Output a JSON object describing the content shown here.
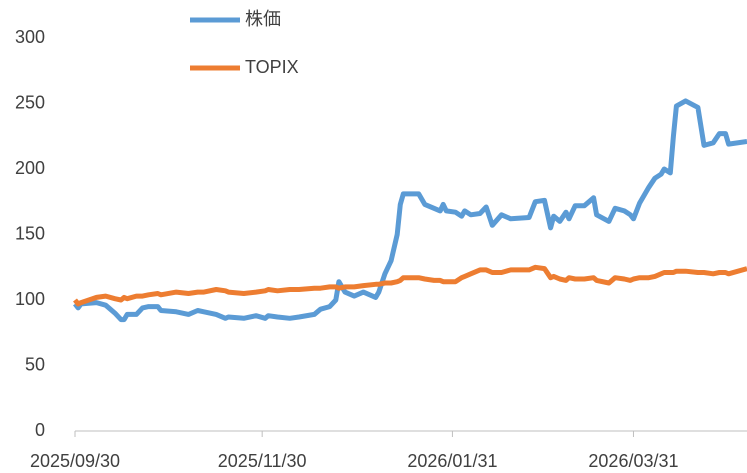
{
  "chart_data": {
    "type": "line",
    "x": [
      "2025/09/30",
      "2025/10/01",
      "2025/10/02",
      "2025/10/07",
      "2025/10/10",
      "2025/10/13",
      "2025/10/15",
      "2025/10/16",
      "2025/10/17",
      "2025/10/20",
      "2025/10/22",
      "2025/10/24",
      "2025/10/27",
      "2025/10/28",
      "2025/11/02",
      "2025/11/06",
      "2025/11/09",
      "2025/11/11",
      "2025/11/15",
      "2025/11/18",
      "2025/11/19",
      "2025/11/24",
      "2025/11/28",
      "2025/12/01",
      "2025/12/02",
      "2025/12/05",
      "2025/12/09",
      "2025/12/12",
      "2025/12/17",
      "2025/12/19",
      "2025/12/22",
      "2025/12/24",
      "2025/12/25",
      "2025/12/27",
      "2025/12/30",
      "2026/01/02",
      "2026/01/06",
      "2026/01/07",
      "2026/01/09",
      "2026/01/11",
      "2026/01/13",
      "2026/01/14",
      "2026/01/15",
      "2026/01/20",
      "2026/01/22",
      "2026/01/25",
      "2026/01/27",
      "2026/01/28",
      "2026/01/29",
      "2026/02/01",
      "2026/02/03",
      "2026/02/04",
      "2026/02/06",
      "2026/02/09",
      "2026/02/11",
      "2026/02/13",
      "2026/02/16",
      "2026/02/19",
      "2026/02/25",
      "2026/02/27",
      "2026/03/02",
      "2026/03/04",
      "2026/03/05",
      "2026/03/07",
      "2026/03/09",
      "2026/03/10",
      "2026/03/12",
      "2026/03/15",
      "2026/03/18",
      "2026/03/19",
      "2026/03/23",
      "2026/03/25",
      "2026/03/28",
      "2026/03/30",
      "2026/03/31",
      "2026/04/02",
      "2026/04/05",
      "2026/04/07",
      "2026/04/09",
      "2026/04/10",
      "2026/04/12",
      "2026/04/13",
      "2026/04/14",
      "2026/04/17",
      "2026/04/21",
      "2026/04/23",
      "2026/04/26",
      "2026/04/28",
      "2026/04/30",
      "2026/05/01",
      "2026/05/07"
    ],
    "series": [
      {
        "name": "株価",
        "color": "#5b9bd5",
        "values": [
          97,
          94,
          97,
          98,
          96,
          90,
          85,
          85,
          89,
          89,
          94,
          95,
          95,
          92,
          91,
          89,
          92,
          91,
          89,
          86,
          87,
          86,
          88,
          86,
          88,
          87,
          86,
          87,
          89,
          93,
          95,
          100,
          114,
          106,
          103,
          106,
          102,
          106,
          120,
          130,
          150,
          173,
          181,
          181,
          173,
          170,
          168,
          173,
          168,
          167,
          164,
          168,
          165,
          166,
          171,
          157,
          165,
          162,
          163,
          175,
          176,
          155,
          164,
          160,
          167,
          162,
          172,
          172,
          178,
          165,
          160,
          170,
          168,
          165,
          162,
          174,
          186,
          193,
          196,
          200,
          197,
          225,
          248,
          252,
          247,
          218,
          220,
          227,
          227,
          219,
          221
        ]
      },
      {
        "name": "TOPIX",
        "color": "#ed7d31",
        "values": [
          100,
          97,
          98,
          102,
          103,
          101,
          100,
          102,
          101,
          103,
          103,
          104,
          105,
          104,
          106,
          105,
          106,
          106,
          108,
          107,
          106,
          105,
          106,
          107,
          108,
          107,
          108,
          108,
          109,
          109,
          110,
          110,
          109,
          110,
          110,
          111,
          112,
          112,
          113,
          113,
          114,
          115,
          117,
          117,
          116,
          115,
          115,
          114,
          114,
          114,
          117,
          118,
          120,
          123,
          123,
          121,
          121,
          123,
          123,
          125,
          124,
          117,
          118,
          116,
          115,
          117,
          116,
          116,
          117,
          115,
          113,
          117,
          116,
          115,
          116,
          117,
          117,
          118,
          120,
          121,
          121,
          121,
          122,
          122,
          121,
          121,
          120,
          121,
          121,
          120,
          124
        ]
      }
    ],
    "xlim": [
      "2025/09/30",
      "2026/05/07"
    ],
    "xticks": [
      "2025/09/30",
      "2025/11/30",
      "2026/01/31",
      "2026/03/31"
    ],
    "ylim": [
      0,
      300
    ],
    "yticks": [
      0,
      50,
      100,
      150,
      200,
      250,
      300
    ],
    "grid": false,
    "legend": "top"
  }
}
